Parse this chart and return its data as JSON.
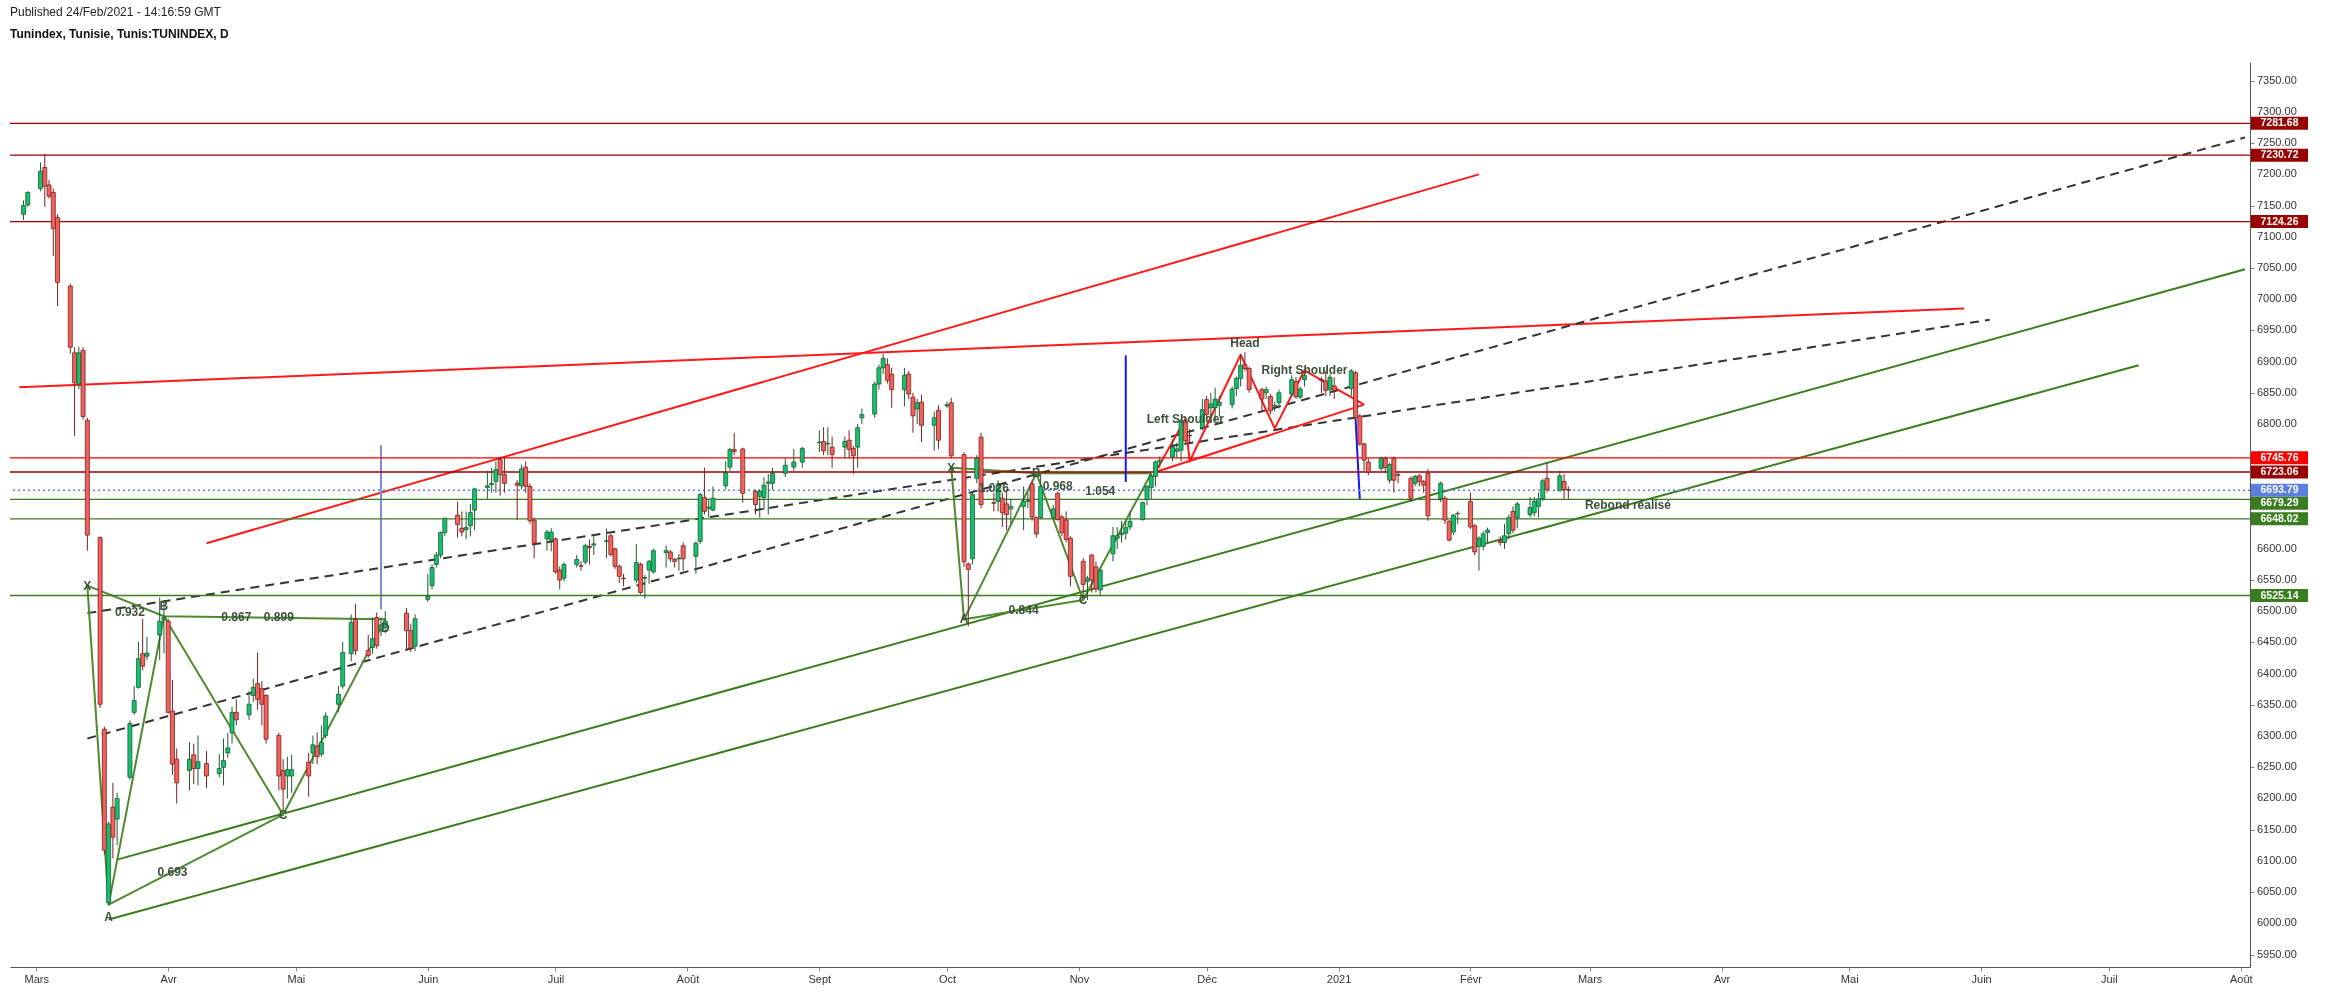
{
  "chart_data": {
    "type": "candlestick",
    "title": "Tunindex, Tunisie, Tunis:TUNINDEX, D",
    "annotations": [
      "Published 24/Feb/2021 - 14:16:59 GMT",
      {
        "text": "X",
        "x": "2020-03-13",
        "y": 6541
      },
      {
        "text": "0.932",
        "x": "2020-03-23",
        "y": 6499
      },
      {
        "text": "B",
        "x": "2020-03-31",
        "y": 6508
      },
      {
        "text": "0.867",
        "x": "2020-04-17",
        "y": 6490
      },
      {
        "text": "0.899",
        "x": "2020-04-27",
        "y": 6490
      },
      {
        "text": "D",
        "x": "2020-05-22",
        "y": 6473
      },
      {
        "text": "C",
        "x": "2020-04-28",
        "y": 6174
      },
      {
        "text": "0.693",
        "x": "2020-04-02",
        "y": 6083
      },
      {
        "text": "A",
        "x": "2020-03-18",
        "y": 6010
      },
      {
        "text": "X",
        "x": "2020-10-02",
        "y": 6730
      },
      {
        "text": "1.026",
        "x": "2020-10-12",
        "y": 6698
      },
      {
        "text": "B",
        "x": "2020-10-22",
        "y": 6722
      },
      {
        "text": "0.968",
        "x": "2020-10-27",
        "y": 6700
      },
      {
        "text": "1.054",
        "x": "2020-11-06",
        "y": 6693
      },
      {
        "text": "A",
        "x": "2020-10-05",
        "y": 6487
      },
      {
        "text": "0.844",
        "x": "2020-10-19",
        "y": 6502
      },
      {
        "text": "C",
        "x": "2020-11-02",
        "y": 6518
      },
      {
        "text": "Left Shoulder",
        "x": "2020-11-26",
        "y": 6808
      },
      {
        "text": "Head",
        "x": "2020-12-10",
        "y": 6930
      },
      {
        "text": "Right Shoulder",
        "x": "2020-12-24",
        "y": 6886
      },
      {
        "text": "Rebond réalisé",
        "x": "2021-03-10",
        "y": 6671
      }
    ],
    "xlim": [
      "2020-02-25",
      "2021-08-02"
    ],
    "xticks": [
      {
        "value": "2020-03-01",
        "label": "Mars"
      },
      {
        "value": "2020-04-01",
        "label": "Avr"
      },
      {
        "value": "2020-05-01",
        "label": "Mai"
      },
      {
        "value": "2020-06-01",
        "label": "Juin"
      },
      {
        "value": "2020-07-01",
        "label": "Juil"
      },
      {
        "value": "2020-08-01",
        "label": "Août"
      },
      {
        "value": "2020-09-01",
        "label": "Sept"
      },
      {
        "value": "2020-10-01",
        "label": "Oct"
      },
      {
        "value": "2020-11-01",
        "label": "Nov"
      },
      {
        "value": "2020-12-01",
        "label": "Déc"
      },
      {
        "value": "2021-01-01",
        "label": "2021"
      },
      {
        "value": "2021-02-01",
        "label": "Févr"
      },
      {
        "value": "2021-03-01",
        "label": "Mars"
      },
      {
        "value": "2021-04-01",
        "label": "Avr"
      },
      {
        "value": "2021-05-01",
        "label": "Mai"
      },
      {
        "value": "2021-06-01",
        "label": "Juin"
      },
      {
        "value": "2021-07-01",
        "label": "Juil"
      },
      {
        "value": "2021-08-01",
        "label": "Août"
      }
    ],
    "ylim": [
      5930,
      7380
    ],
    "yticks": [
      {
        "value": 5950,
        "label": "5950.00"
      },
      {
        "value": 6000,
        "label": "6000.00"
      },
      {
        "value": 6050,
        "label": "6050.00"
      },
      {
        "value": 6100,
        "label": "6100.00"
      },
      {
        "value": 6150,
        "label": "6150.00"
      },
      {
        "value": 6200,
        "label": "6200.00"
      },
      {
        "value": 6250,
        "label": "6250.00"
      },
      {
        "value": 6300,
        "label": "6300.00"
      },
      {
        "value": 6350,
        "label": "6350.00"
      },
      {
        "value": 6400,
        "label": "6400.00"
      },
      {
        "value": 6450,
        "label": "6450.00"
      },
      {
        "value": 6500,
        "label": "6500.00"
      },
      {
        "value": 6550,
        "label": "6550.00"
      },
      {
        "value": 6600,
        "label": "6600.00"
      },
      {
        "value": 6650,
        "label": null
      },
      {
        "value": 6700,
        "label": null
      },
      {
        "value": 6750,
        "label": null
      },
      {
        "value": 6800,
        "label": "6800.00"
      },
      {
        "value": 6850,
        "label": "6850.00"
      },
      {
        "value": 6900,
        "label": "6900.00"
      },
      {
        "value": 6950,
        "label": "6950.00"
      },
      {
        "value": 7000,
        "label": "7000.00"
      },
      {
        "value": 7050,
        "label": "7050.00"
      },
      {
        "value": 7100,
        "label": "7100.00"
      },
      {
        "value": 7150,
        "label": "7150.00"
      },
      {
        "value": 7200,
        "label": "7200.00"
      },
      {
        "value": 7250,
        "label": "7250.00"
      },
      {
        "value": 7300,
        "label": "7300.00"
      },
      {
        "value": 7350,
        "label": "7350.00"
      }
    ],
    "ref_lines": [
      {
        "axis": "y",
        "value": 7281.68,
        "label": "7281.68",
        "color": "#990000"
      },
      {
        "axis": "y",
        "value": 7230.72,
        "label": "7230.72",
        "color": "#990000"
      },
      {
        "axis": "y",
        "value": 7124.26,
        "label": "7124.26",
        "color": "#990000"
      },
      {
        "axis": "y",
        "value": 6745.76,
        "label": "6745.76",
        "color": "#ff0000"
      },
      {
        "axis": "y",
        "value": 6723.06,
        "label": "6723.06",
        "color": "#990000"
      },
      {
        "axis": "y",
        "value": 6693.79,
        "label": "6693.79",
        "color": "#5b7fe0",
        "line_style": "dotted"
      },
      {
        "axis": "y",
        "value": 6679.29,
        "label": "6679.29",
        "color": "#3a7d1e"
      },
      {
        "axis": "y",
        "value": 6648.02,
        "label": "6648.02",
        "color": "#3a7d1e"
      },
      {
        "axis": "y",
        "value": 6525.14,
        "label": "6525.14",
        "color": "#3a7d1e"
      }
    ],
    "x": [
      "2020-02-27",
      "2020-02-28",
      "2020-03-02",
      "2020-03-03",
      "2020-03-04",
      "2020-03-05",
      "2020-03-06",
      "2020-03-09",
      "2020-03-10",
      "2020-03-11",
      "2020-03-12",
      "2020-03-13",
      "2020-03-16",
      "2020-03-17",
      "2020-03-18",
      "2020-03-19",
      "2020-03-20",
      "2020-03-23",
      "2020-03-24",
      "2020-03-25",
      "2020-03-26",
      "2020-03-27",
      "2020-03-30",
      "2020-03-31",
      "2020-04-01",
      "2020-04-02",
      "2020-04-03",
      "2020-04-06",
      "2020-04-07",
      "2020-04-08",
      "2020-04-10",
      "2020-04-13",
      "2020-04-14",
      "2020-04-15",
      "2020-04-16",
      "2020-04-17",
      "2020-04-20",
      "2020-04-21",
      "2020-04-22",
      "2020-04-23",
      "2020-04-24",
      "2020-04-27",
      "2020-04-28",
      "2020-04-29",
      "2020-04-30",
      "2020-05-04",
      "2020-05-05",
      "2020-05-06",
      "2020-05-07",
      "2020-05-08",
      "2020-05-11",
      "2020-05-12",
      "2020-05-14",
      "2020-05-15",
      "2020-05-18",
      "2020-05-19",
      "2020-05-20",
      "2020-05-21",
      "2020-05-22",
      "2020-05-27",
      "2020-05-28",
      "2020-05-29",
      "2020-06-01",
      "2020-06-02",
      "2020-06-03",
      "2020-06-04",
      "2020-06-05",
      "2020-06-08",
      "2020-06-09",
      "2020-06-10",
      "2020-06-11",
      "2020-06-12",
      "2020-06-15",
      "2020-06-16",
      "2020-06-17",
      "2020-06-18",
      "2020-06-19",
      "2020-06-22",
      "2020-06-23",
      "2020-06-24",
      "2020-06-25",
      "2020-06-26",
      "2020-06-29",
      "2020-06-30",
      "2020-07-01",
      "2020-07-02",
      "2020-07-03",
      "2020-07-06",
      "2020-07-07",
      "2020-07-08",
      "2020-07-09",
      "2020-07-10",
      "2020-07-13",
      "2020-07-14",
      "2020-07-15",
      "2020-07-16",
      "2020-07-17",
      "2020-07-20",
      "2020-07-21",
      "2020-07-22",
      "2020-07-23",
      "2020-07-24",
      "2020-07-27",
      "2020-07-28",
      "2020-07-29",
      "2020-07-30",
      "2020-07-31",
      "2020-08-03",
      "2020-08-04",
      "2020-08-05",
      "2020-08-06",
      "2020-08-07",
      "2020-08-10",
      "2020-08-11",
      "2020-08-12",
      "2020-08-14",
      "2020-08-17",
      "2020-08-18",
      "2020-08-19",
      "2020-08-20",
      "2020-08-21",
      "2020-08-24",
      "2020-08-26",
      "2020-08-28",
      "2020-09-01",
      "2020-09-02",
      "2020-09-03",
      "2020-09-04",
      "2020-09-07",
      "2020-09-08",
      "2020-09-09",
      "2020-09-10",
      "2020-09-11",
      "2020-09-14",
      "2020-09-15",
      "2020-09-16",
      "2020-09-17",
      "2020-09-18",
      "2020-09-21",
      "2020-09-22",
      "2020-09-23",
      "2020-09-24",
      "2020-09-25",
      "2020-09-28",
      "2020-09-29",
      "2020-10-01",
      "2020-10-02",
      "2020-10-05",
      "2020-10-06",
      "2020-10-07",
      "2020-10-08",
      "2020-10-09",
      "2020-10-12",
      "2020-10-13",
      "2020-10-14",
      "2020-10-15",
      "2020-10-16",
      "2020-10-19",
      "2020-10-20",
      "2020-10-21",
      "2020-10-22",
      "2020-10-23",
      "2020-10-26",
      "2020-10-27",
      "2020-10-28",
      "2020-10-29",
      "2020-10-30",
      "2020-11-02",
      "2020-11-03",
      "2020-11-04",
      "2020-11-05",
      "2020-11-06",
      "2020-11-09",
      "2020-11-10",
      "2020-11-11",
      "2020-11-12",
      "2020-11-13",
      "2020-11-16",
      "2020-11-17",
      "2020-11-18",
      "2020-11-19",
      "2020-11-20",
      "2020-11-23",
      "2020-11-24",
      "2020-11-25",
      "2020-11-26",
      "2020-11-27",
      "2020-11-30",
      "2020-12-01",
      "2020-12-02",
      "2020-12-03",
      "2020-12-04",
      "2020-12-07",
      "2020-12-08",
      "2020-12-09",
      "2020-12-10",
      "2020-12-11",
      "2020-12-14",
      "2020-12-15",
      "2020-12-16",
      "2020-12-17",
      "2020-12-18",
      "2020-12-21",
      "2020-12-22",
      "2020-12-23",
      "2020-12-24",
      "2020-12-28",
      "2020-12-29",
      "2020-12-30",
      "2020-12-31",
      "2021-01-04",
      "2021-01-05",
      "2021-01-06",
      "2021-01-07",
      "2021-01-08",
      "2021-01-11",
      "2021-01-12",
      "2021-01-13",
      "2021-01-14",
      "2021-01-15",
      "2021-01-18",
      "2021-01-19",
      "2021-01-20",
      "2021-01-21",
      "2021-01-22",
      "2021-01-25",
      "2021-01-26",
      "2021-01-27",
      "2021-01-28",
      "2021-01-29",
      "2021-02-01",
      "2021-02-02",
      "2021-02-03",
      "2021-02-04",
      "2021-02-05",
      "2021-02-08",
      "2021-02-09",
      "2021-02-10",
      "2021-02-11",
      "2021-02-12",
      "2021-02-15",
      "2021-02-16",
      "2021-02-17",
      "2021-02-18",
      "2021-02-19",
      "2021-02-22",
      "2021-02-23",
      "2021-02-24"
    ],
    "ohlc": [
      [
        7136,
        7158,
        7127,
        7150
      ],
      [
        7151,
        7173,
        7148,
        7171
      ],
      [
        7177,
        7219,
        7173,
        7205
      ],
      [
        7211,
        7233,
        7148,
        7181
      ],
      [
        7183,
        7191,
        7161,
        7165
      ],
      [
        7171,
        7177,
        7069,
        7113
      ],
      [
        7131,
        7136,
        6989,
        7027
      ],
      [
        7021,
        7025,
        6913,
        6923
      ],
      [
        6914,
        6923,
        6781,
        6866
      ],
      [
        6864,
        6924,
        6856,
        6914
      ],
      [
        6918,
        6923,
        6807,
        6812
      ],
      [
        6806,
        6810,
        6597,
        6622
      ],
      [
        6618,
        6620,
        6345,
        6351
      ],
      [
        6311,
        6315,
        6110,
        6117
      ],
      [
        6033,
        6163,
        6029,
        6159
      ],
      [
        6186,
        6225,
        6104,
        6138
      ],
      [
        6167,
        6209,
        6125,
        6200
      ],
      [
        6234,
        6325,
        6230,
        6320
      ],
      [
        6338,
        6380,
        6334,
        6357
      ],
      [
        6378,
        6451,
        6376,
        6424
      ],
      [
        6432,
        6488,
        6405,
        6412
      ],
      [
        6428,
        6459,
        6422,
        6433
      ],
      [
        6462,
        6522,
        6422,
        6484
      ],
      [
        6487,
        6518,
        6433,
        6490
      ],
      [
        6484,
        6488,
        6336,
        6338
      ],
      [
        6340,
        6390,
        6238,
        6255
      ],
      [
        6263,
        6280,
        6192,
        6225
      ],
      [
        6245,
        6290,
        6213,
        6263
      ],
      [
        6270,
        6288,
        6223,
        6248
      ],
      [
        6248,
        6301,
        6221,
        6259
      ],
      [
        6256,
        6276,
        6217,
        6236
      ],
      [
        6240,
        6271,
        6234,
        6248
      ],
      [
        6250,
        6296,
        6221,
        6261
      ],
      [
        6273,
        6305,
        6265,
        6281
      ],
      [
        6305,
        6347,
        6288,
        6338
      ],
      [
        6338,
        6359,
        6317,
        6326
      ],
      [
        6334,
        6372,
        6326,
        6351
      ],
      [
        6365,
        6392,
        6355,
        6378
      ],
      [
        6384,
        6434,
        6342,
        6359
      ],
      [
        6376,
        6388,
        6317,
        6351
      ],
      [
        6365,
        6367,
        6288,
        6295
      ],
      [
        6301,
        6305,
        6213,
        6236
      ],
      [
        6245,
        6263,
        6180,
        6215
      ],
      [
        6236,
        6267,
        6200,
        6246
      ],
      [
        6236,
        6270,
        6209,
        6246
      ],
      [
        6258,
        6273,
        6203,
        6236
      ],
      [
        6273,
        6301,
        6255,
        6286
      ],
      [
        6284,
        6306,
        6255,
        6267
      ],
      [
        6271,
        6317,
        6267,
        6290
      ],
      [
        6301,
        6338,
        6296,
        6332
      ],
      [
        6351,
        6380,
        6338,
        6367
      ],
      [
        6380,
        6451,
        6376,
        6434
      ],
      [
        6432,
        6495,
        6420,
        6482
      ],
      [
        6487,
        6512,
        6430,
        6437
      ],
      [
        6437,
        6462,
        6425,
        6429
      ],
      [
        6442,
        6490,
        6432,
        6456
      ],
      [
        6490,
        6498,
        6440,
        6445
      ],
      [
        6470,
        6490,
        6460,
        6478
      ],
      [
        6474,
        6500,
        6465,
        6484
      ],
      [
        6497,
        6505,
        6440,
        6469
      ],
      [
        6469,
        6480,
        6435,
        6441
      ],
      [
        6444,
        6495,
        6436,
        6488
      ],
      [
        6519,
        6560,
        6515,
        6524
      ],
      [
        6541,
        6575,
        6535,
        6570
      ],
      [
        6575,
        6595,
        6570,
        6590
      ],
      [
        6590,
        6628,
        6585,
        6626
      ],
      [
        6626,
        6650,
        6620,
        6649
      ],
      [
        6654,
        6676,
        6618,
        6639
      ],
      [
        6633,
        6660,
        6620,
        6627
      ],
      [
        6631,
        6660,
        6615,
        6634
      ],
      [
        6637,
        6672,
        6620,
        6658
      ],
      [
        6662,
        6698,
        6630,
        6696
      ],
      [
        6698,
        6725,
        6680,
        6701
      ],
      [
        6703,
        6730,
        6690,
        6705
      ],
      [
        6708,
        6740,
        6690,
        6727
      ],
      [
        6743,
        6748,
        6685,
        6719
      ],
      [
        6719,
        6748,
        6690,
        6705
      ],
      [
        6705,
        6710,
        6646,
        6702
      ],
      [
        6701,
        6735,
        6695,
        6728
      ],
      [
        6731,
        6740,
        6690,
        6700
      ],
      [
        6700,
        6705,
        6640,
        6645
      ],
      [
        6646,
        6650,
        6585,
        6609
      ],
      [
        6616,
        6630,
        6597,
        6627
      ],
      [
        6614,
        6633,
        6596,
        6627
      ],
      [
        6616,
        6618,
        6560,
        6563
      ],
      [
        6566,
        6572,
        6535,
        6550
      ],
      [
        6553,
        6578,
        6548,
        6575
      ],
      [
        6575,
        6590,
        6570,
        6583
      ],
      [
        6573,
        6580,
        6565,
        6572
      ],
      [
        6579,
        6608,
        6575,
        6605
      ],
      [
        6604,
        6615,
        6575,
        6602
      ],
      [
        6606,
        6620,
        6590,
        6608
      ],
      [
        6612,
        6632,
        6585,
        6613
      ],
      [
        6621,
        6624,
        6588,
        6591
      ],
      [
        6600,
        6602,
        6568,
        6572
      ],
      [
        6572,
        6575,
        6545,
        6556
      ],
      [
        6553,
        6560,
        6540,
        6552
      ],
      [
        6550,
        6608,
        6545,
        6578
      ],
      [
        6575,
        6578,
        6527,
        6530
      ],
      [
        6553,
        6558,
        6520,
        6554
      ],
      [
        6566,
        6582,
        6544,
        6580
      ],
      [
        6563,
        6600,
        6560,
        6597
      ],
      [
        6594,
        6605,
        6570,
        6597
      ],
      [
        6595,
        6598,
        6579,
        6584
      ],
      [
        6583,
        6585,
        6570,
        6580
      ],
      [
        6584,
        6592,
        6565,
        6585
      ],
      [
        6605,
        6610,
        6565,
        6584
      ],
      [
        6588,
        6612,
        6560,
        6609
      ],
      [
        6612,
        6690,
        6608,
        6687
      ],
      [
        6682,
        6730,
        6655,
        6660
      ],
      [
        6665,
        6680,
        6650,
        6667
      ],
      [
        6662,
        6700,
        6660,
        6681
      ],
      [
        6701,
        6740,
        6695,
        6722
      ],
      [
        6731,
        6762,
        6725,
        6759
      ],
      [
        6759,
        6786,
        6750,
        6756
      ],
      [
        6760,
        6762,
        6674,
        6689
      ],
      [
        6692,
        6695,
        6655,
        6671
      ],
      [
        6684,
        6695,
        6650,
        6692
      ],
      [
        6682,
        6715,
        6662,
        6702
      ],
      [
        6705,
        6720,
        6655,
        6707
      ],
      [
        6705,
        6730,
        6695,
        6721
      ],
      [
        6721,
        6745,
        6715,
        6734
      ],
      [
        6731,
        6760,
        6725,
        6739
      ],
      [
        6739,
        6763,
        6730,
        6761
      ],
      [
        6770,
        6790,
        6755,
        6771
      ],
      [
        6772,
        6795,
        6750,
        6757
      ],
      [
        6768,
        6795,
        6750,
        6769
      ],
      [
        6763,
        6780,
        6730,
        6751
      ],
      [
        6763,
        6780,
        6745,
        6772
      ],
      [
        6774,
        6790,
        6745,
        6759
      ],
      [
        6761,
        6765,
        6720,
        6749
      ],
      [
        6763,
        6800,
        6730,
        6794
      ],
      [
        6810,
        6825,
        6800,
        6815
      ],
      [
        6816,
        6868,
        6810,
        6864
      ],
      [
        6864,
        6895,
        6855,
        6890
      ],
      [
        6890,
        6912,
        6880,
        6905
      ],
      [
        6895,
        6905,
        6865,
        6870
      ],
      [
        6880,
        6890,
        6826,
        6855
      ],
      [
        6855,
        6890,
        6828,
        6878
      ],
      [
        6880,
        6885,
        6840,
        6848
      ],
      [
        6843,
        6850,
        6786,
        6813
      ],
      [
        6824,
        6840,
        6800,
        6834
      ],
      [
        6835,
        6847,
        6771,
        6798
      ],
      [
        6798,
        6820,
        6757,
        6810
      ],
      [
        6822,
        6830,
        6760,
        6774
      ],
      [
        6829,
        6836,
        6825,
        6831
      ],
      [
        6834,
        6842,
        6745,
        6749
      ],
      [
        6751,
        6755,
        6571,
        6579
      ],
      [
        6576,
        6578,
        6476,
        6567
      ],
      [
        6584,
        6690,
        6575,
        6687
      ],
      [
        6713,
        6750,
        6705,
        6745
      ],
      [
        6779,
        6786,
        6665,
        6671
      ],
      [
        6674,
        6690,
        6660,
        6673
      ],
      [
        6676,
        6710,
        6660,
        6702
      ],
      [
        6681,
        6690,
        6635,
        6658
      ],
      [
        6672,
        6695,
        6630,
        6655
      ],
      [
        6664,
        6680,
        6640,
        6668
      ],
      [
        6668,
        6700,
        6630,
        6676
      ],
      [
        6676,
        6690,
        6665,
        6677
      ],
      [
        6704,
        6708,
        6645,
        6651
      ],
      [
        6650,
        6652,
        6618,
        6624
      ],
      [
        6650,
        6720,
        6648,
        6700
      ],
      [
        6650,
        6670,
        6648,
        6664
      ],
      [
        6689,
        6692,
        6645,
        6647
      ],
      [
        6651,
        6654,
        6620,
        6626
      ],
      [
        6646,
        6660,
        6610,
        6615
      ],
      [
        6617,
        6620,
        6540,
        6556
      ],
      [
        6580,
        6585,
        6520,
        6543
      ],
      [
        6548,
        6557,
        6518,
        6553
      ],
      [
        6590,
        6592,
        6530,
        6550
      ],
      [
        6571,
        6580,
        6530,
        6536
      ],
      [
        6534,
        6568,
        6525,
        6566
      ],
      [
        6592,
        6635,
        6580,
        6621
      ],
      [
        6617,
        6635,
        6600,
        6621
      ],
      [
        6623,
        6645,
        6610,
        6625
      ],
      [
        6625,
        6645,
        6615,
        6634
      ],
      [
        6635,
        6660,
        6630,
        6644
      ],
      [
        6647,
        6676,
        6645,
        6674
      ],
      [
        6679,
        6702,
        6670,
        6700
      ],
      [
        6698,
        6720,
        6680,
        6717
      ],
      [
        6716,
        6742,
        6700,
        6739
      ],
      [
        6739,
        6748,
        6730,
        6742
      ],
      [
        6747,
        6775,
        6740,
        6763
      ],
      [
        6756,
        6770,
        6745,
        6760
      ],
      [
        6758,
        6808,
        6740,
        6805
      ],
      [
        6805,
        6808,
        6770,
        6773
      ],
      [
        6782,
        6792,
        6770,
        6781
      ],
      [
        6794,
        6840,
        6790,
        6823
      ],
      [
        6839,
        6845,
        6810,
        6815
      ],
      [
        6826,
        6850,
        6815,
        6832
      ],
      [
        6826,
        6858,
        6805,
        6840
      ],
      [
        6830,
        6845,
        6812,
        6835
      ],
      [
        6831,
        6860,
        6825,
        6856
      ],
      [
        6857,
        6876,
        6845,
        6873
      ],
      [
        6873,
        6912,
        6860,
        6894
      ],
      [
        6895,
        6915,
        6885,
        6889
      ],
      [
        6889,
        6892,
        6850,
        6855
      ],
      [
        6855,
        6858,
        6820,
        6840
      ],
      [
        6850,
        6860,
        6840,
        6855
      ],
      [
        6844,
        6848,
        6815,
        6821
      ],
      [
        6829,
        6836,
        6820,
        6830
      ],
      [
        6834,
        6855,
        6825,
        6850
      ],
      [
        6848,
        6878,
        6845,
        6871
      ],
      [
        6868,
        6875,
        6840,
        6844
      ],
      [
        6843,
        6860,
        6840,
        6856
      ],
      [
        6871,
        6882,
        6860,
        6878
      ],
      [
        6871,
        6875,
        6850,
        6870
      ],
      [
        6869,
        6885,
        6845,
        6854
      ],
      [
        6855,
        6880,
        6845,
        6875
      ],
      [
        6861,
        6875,
        6840,
        6854
      ],
      [
        6857,
        6888,
        6845,
        6885
      ],
      [
        6882,
        6885,
        6805,
        6810
      ],
      [
        6813,
        6816,
        6765,
        6768
      ],
      [
        6768,
        6770,
        6725,
        6742
      ],
      [
        6739,
        6745,
        6718,
        6723
      ],
      [
        6729,
        6748,
        6725,
        6745
      ],
      [
        6745,
        6748,
        6722,
        6730
      ],
      [
        6710,
        6738,
        6705,
        6735
      ],
      [
        6745,
        6748,
        6690,
        6710
      ],
      [
        6719,
        6725,
        6705,
        6718
      ],
      [
        6713,
        6716,
        6676,
        6681
      ],
      [
        6705,
        6718,
        6700,
        6716
      ],
      [
        6717,
        6720,
        6700,
        6708
      ],
      [
        6708,
        6710,
        6690,
        6702
      ],
      [
        6721,
        6728,
        6645,
        6653
      ],
      [
        6680,
        6708,
        6675,
        6705
      ],
      [
        6681,
        6685,
        6640,
        6646
      ],
      [
        6644,
        6646,
        6612,
        6614
      ],
      [
        6627,
        6656,
        6622,
        6654
      ],
      [
        6656,
        6660,
        6640,
        6657
      ],
      [
        6676,
        6690,
        6632,
        6635
      ],
      [
        6637,
        6640,
        6590,
        6595
      ],
      [
        6604,
        6620,
        6565,
        6617
      ],
      [
        6604,
        6628,
        6598,
        6624
      ],
      [
        6626,
        6634,
        6610,
        6630
      ],
      [
        6613,
        6620,
        6605,
        6610
      ],
      [
        6610,
        6640,
        6600,
        6621
      ],
      [
        6624,
        6655,
        6615,
        6650
      ],
      [
        6660,
        6668,
        6625,
        6630
      ],
      [
        6650,
        6675,
        6633,
        6672
      ],
      [
        6655,
        6683,
        6650,
        6666
      ],
      [
        6658,
        6683,
        6652,
        6676
      ],
      [
        6668,
        6690,
        6650,
        6680
      ],
      [
        6680,
        6712,
        6677,
        6709
      ],
      [
        6713,
        6738,
        6690,
        6695
      ],
      [
        6693,
        6725,
        6693,
        6717
      ],
      [
        6708,
        6720,
        6680,
        6695
      ],
      [
        6695,
        6700,
        6680,
        6693.79
      ]
    ],
    "series": [
      {
        "type": "line",
        "color": "#ff1a1a",
        "x": [
          "2020-04-10",
          "2021-02-03"
        ],
        "values": [
          6609,
          7200
        ]
      },
      {
        "type": "line",
        "color": "#ff1a1a",
        "x": [
          "2020-02-26",
          "2021-05-28"
        ],
        "values": [
          6859,
          6985
        ]
      },
      {
        "type": "line",
        "color": "#333333",
        "line_style": "dashed",
        "x": [
          "2020-03-13",
          "2021-06-03"
        ],
        "values": [
          6497,
          6967
        ]
      },
      {
        "type": "line",
        "color": "#333333",
        "line_style": "dashed",
        "x": [
          "2020-03-13",
          "2021-08-02"
        ],
        "values": [
          6296,
          7259
        ]
      },
      {
        "type": "line",
        "color": "#3a7d1e",
        "x": [
          "2020-03-20",
          "2021-08-02"
        ],
        "values": [
          6102,
          7048
        ]
      },
      {
        "type": "line",
        "color": "#3a7d1e",
        "x": [
          "2020-03-18",
          "2021-07-08"
        ],
        "values": [
          6006,
          6894
        ]
      },
      {
        "type": "line",
        "color": "#4e8a2e",
        "x": [
          "2020-03-13",
          "2020-03-18",
          "2020-03-31",
          "2020-04-28",
          "2020-05-22"
        ],
        "values": [
          6541,
          6030,
          6492,
          6174,
          6487
        ]
      },
      {
        "type": "line",
        "color": "#4e8a2e",
        "x": [
          "2020-03-13",
          "2020-03-31",
          "2020-05-22"
        ],
        "values": [
          6541,
          6492,
          6487
        ]
      },
      {
        "type": "line",
        "color": "#4e8a2e",
        "x": [
          "2020-03-18",
          "2020-04-28"
        ],
        "values": [
          6030,
          6174
        ]
      },
      {
        "type": "line",
        "color": "#4e8a2e",
        "x": [
          "2020-10-02",
          "2020-10-05",
          "2020-10-22",
          "2020-11-02",
          "2020-11-18"
        ],
        "values": [
          6730,
          6487,
          6721,
          6518,
          6721
        ]
      },
      {
        "type": "line",
        "color": "#4e8a2e",
        "x": [
          "2020-10-02",
          "2020-10-22",
          "2020-11-18"
        ],
        "values": [
          6730,
          6721,
          6721
        ]
      },
      {
        "type": "line",
        "color": "#4e8a2e",
        "x": [
          "2020-10-05",
          "2020-11-02"
        ],
        "values": [
          6487,
          6518
        ]
      },
      {
        "type": "line",
        "color": "#ff1a1a",
        "x": [
          "2020-11-19",
          "2020-11-26",
          "2020-11-27",
          "2020-12-09",
          "2020-12-17",
          "2020-12-24",
          "2021-01-07"
        ],
        "values": [
          6723,
          6808,
          6740,
          6911,
          6793,
          6886,
          6831
        ]
      },
      {
        "type": "line",
        "color": "#ff1a1a",
        "x": [
          "2020-11-19",
          "2021-01-07"
        ],
        "values": [
          6723,
          6831
        ]
      },
      {
        "type": "line",
        "color": "#7b8fd0",
        "x": [
          "2020-05-21",
          "2020-05-21"
        ],
        "values": [
          6503,
          6766
        ]
      },
      {
        "type": "line",
        "color": "#1515ff",
        "x": [
          "2020-11-12",
          "2020-11-12"
        ],
        "values": [
          6707,
          6910
        ]
      },
      {
        "type": "line",
        "color": "#1515ff",
        "x": [
          "2021-01-05",
          "2021-01-06"
        ],
        "values": [
          6808,
          6679
        ]
      }
    ]
  }
}
